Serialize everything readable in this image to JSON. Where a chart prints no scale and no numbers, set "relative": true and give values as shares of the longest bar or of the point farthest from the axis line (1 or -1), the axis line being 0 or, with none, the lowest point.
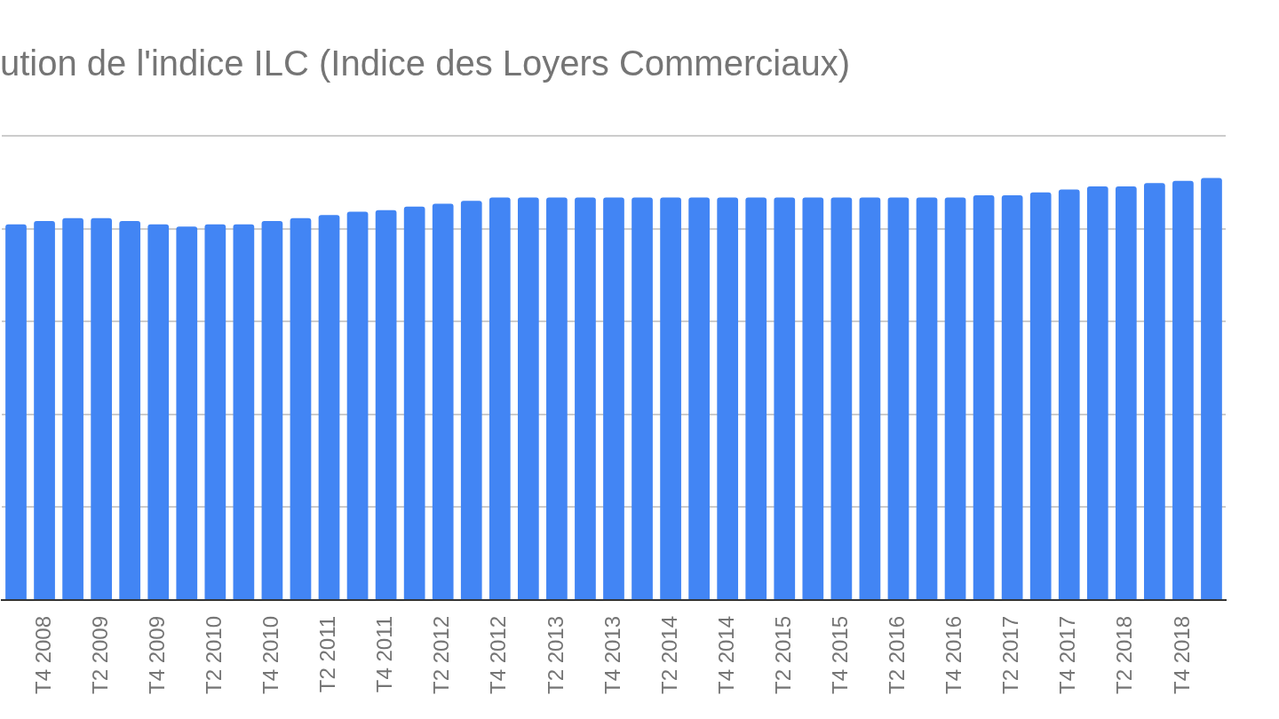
{
  "chart_data": {
    "type": "bar",
    "title": "ution de l'indice ILC (Indice des Loyers Commerciaux)",
    "relative": true,
    "grid": "y",
    "color": "#4285f4",
    "categories": [
      null,
      "T4 2008",
      null,
      "T2 2009",
      null,
      "T4 2009",
      null,
      "T2 2010",
      null,
      "T4 2010",
      null,
      "T2 2011",
      null,
      "T4 2011",
      null,
      "T2 2012",
      null,
      "T4 2012",
      null,
      "T2 2013",
      null,
      "T4 2013",
      null,
      "T2 2014",
      null,
      "T4 2014",
      null,
      "T2 2015",
      null,
      "T4 2015",
      null,
      "T2 2016",
      null,
      "T4 2016",
      null,
      "T2 2017",
      null,
      "T4 2017",
      null,
      "T2 2018",
      null,
      "T4 2018",
      null
    ],
    "values": [
      0.89,
      0.898,
      0.905,
      0.905,
      0.898,
      0.89,
      0.885,
      0.89,
      0.89,
      0.898,
      0.905,
      0.912,
      0.92,
      0.924,
      0.932,
      0.939,
      0.946,
      0.954,
      0.954,
      0.954,
      0.954,
      0.954,
      0.954,
      0.954,
      0.954,
      0.954,
      0.954,
      0.954,
      0.954,
      0.954,
      0.954,
      0.954,
      0.954,
      0.954,
      0.959,
      0.959,
      0.966,
      0.973,
      0.98,
      0.98,
      0.988,
      0.993,
      1
    ]
  }
}
